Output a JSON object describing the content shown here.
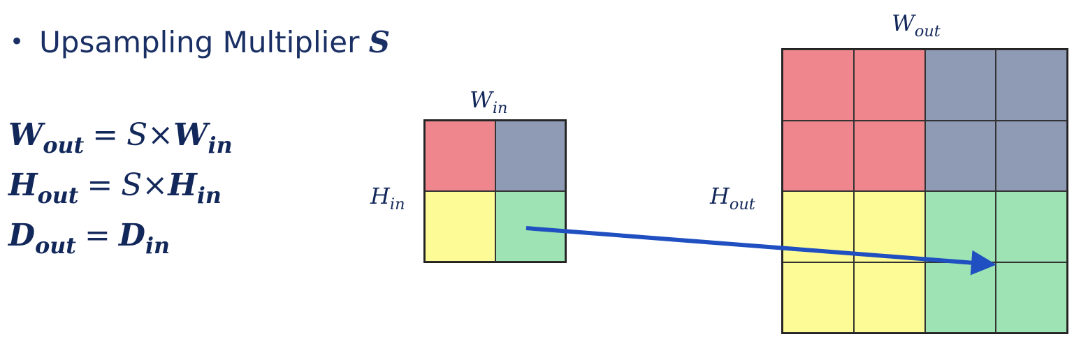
{
  "bullet": {
    "text": "Upsampling Multiplier",
    "symbol": "S"
  },
  "equations": [
    {
      "lhs": "W",
      "lhs_sub": "out",
      "op": "=",
      "factor": "S",
      "times": "×",
      "rhs": "W",
      "rhs_sub": "in"
    },
    {
      "lhs": "H",
      "lhs_sub": "out",
      "op": "=",
      "factor": "S",
      "times": "×",
      "rhs": "H",
      "rhs_sub": "in"
    },
    {
      "lhs": "D",
      "lhs_sub": "out",
      "op": "=",
      "factor": "",
      "times": "",
      "rhs": "D",
      "rhs_sub": "in"
    }
  ],
  "input_grid": {
    "width_label": "W",
    "width_sub": "in",
    "height_label": "H",
    "height_sub": "in",
    "rows": 2,
    "cols": 2,
    "cells": [
      "red",
      "gray",
      "yellow",
      "green"
    ]
  },
  "output_grid": {
    "width_label": "W",
    "width_sub": "out",
    "height_label": "H",
    "height_sub": "out",
    "rows": 4,
    "cols": 4,
    "cells": [
      "red",
      "red",
      "gray",
      "gray",
      "red",
      "red",
      "gray",
      "gray",
      "yellow",
      "yellow",
      "green",
      "green",
      "yellow",
      "yellow",
      "green",
      "green"
    ]
  },
  "colors": {
    "red": "#ef868e",
    "gray": "#8f9ab4",
    "yellow": "#fdfb95",
    "green": "#9de3b3",
    "arrow": "#1f4fc0",
    "text": "#13285a"
  }
}
